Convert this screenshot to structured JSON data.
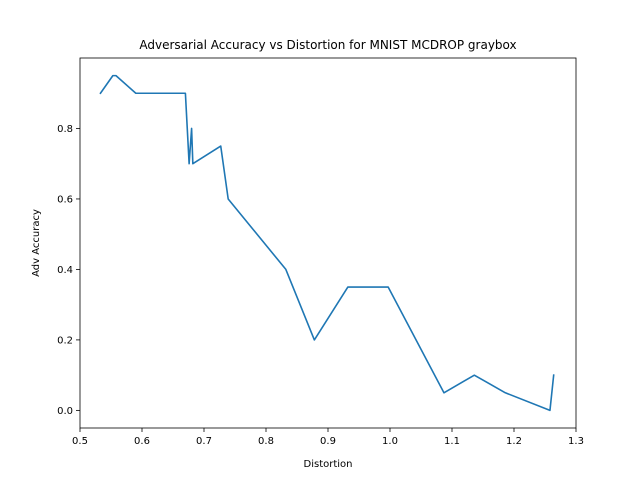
{
  "chart_data": {
    "type": "line",
    "title": "Adversarial Accuracy vs Distortion for MNIST MCDROP graybox",
    "xlabel": "Distortion",
    "ylabel": "Adv Accuracy",
    "xlim": [
      0.5,
      1.3
    ],
    "ylim": [
      -0.05,
      1.0
    ],
    "xticks": [
      0.5,
      0.6,
      0.7,
      0.8,
      0.9,
      1.0,
      1.1,
      1.2,
      1.3
    ],
    "xtick_labels": [
      "0.5",
      "0.6",
      "0.7",
      "0.8",
      "0.9",
      "1.0",
      "1.1",
      "1.2",
      "1.3"
    ],
    "yticks": [
      0.0,
      0.2,
      0.4,
      0.6,
      0.8
    ],
    "ytick_labels": [
      "0.0",
      "0.2",
      "0.4",
      "0.6",
      "0.8"
    ],
    "grid": false,
    "series": [
      {
        "color": "#1f77b4",
        "points": [
          [
            0.533,
            0.9
          ],
          [
            0.553,
            0.95
          ],
          [
            0.558,
            0.95
          ],
          [
            0.59,
            0.9
          ],
          [
            0.67,
            0.9
          ],
          [
            0.676,
            0.7
          ],
          [
            0.68,
            0.8
          ],
          [
            0.682,
            0.7
          ],
          [
            0.727,
            0.75
          ],
          [
            0.739,
            0.6
          ],
          [
            0.832,
            0.4
          ],
          [
            0.878,
            0.2
          ],
          [
            0.932,
            0.35
          ],
          [
            0.997,
            0.35
          ],
          [
            1.087,
            0.05
          ],
          [
            1.136,
            0.1
          ],
          [
            1.186,
            0.05
          ],
          [
            1.258,
            0.0
          ],
          [
            1.264,
            0.1
          ]
        ]
      }
    ]
  }
}
